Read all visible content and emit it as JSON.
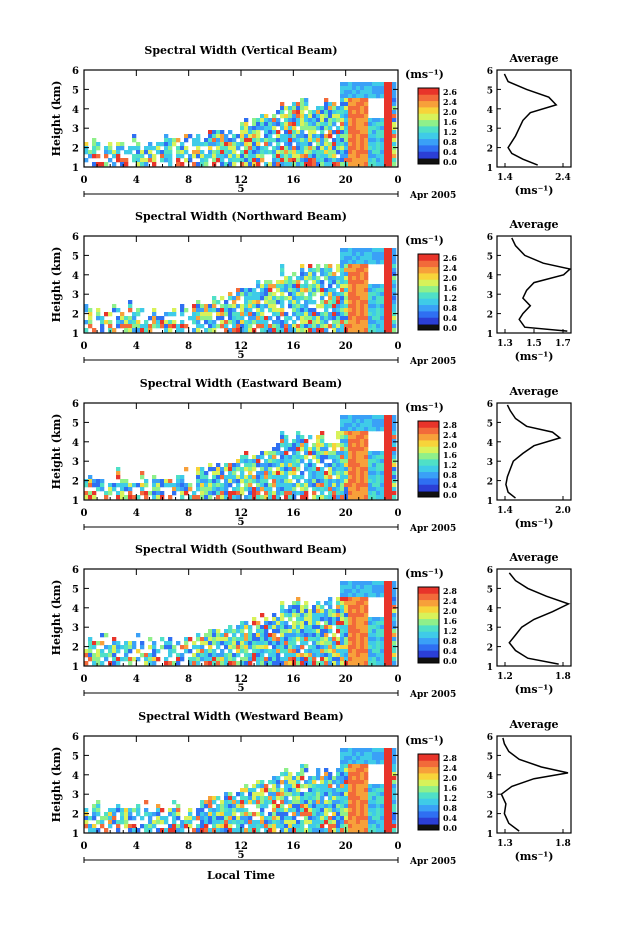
{
  "x_axis_title": "Local Time",
  "date_label": "Apr 2005",
  "date_marker": "5",
  "colorbar_unit": "(ms⁻¹)",
  "average_unit": "(ms⁻¹)",
  "average_title": "Average",
  "y_axis_label": "Height (km)",
  "colors": {
    "colormap": [
      "#1a237e",
      "#2b3fd6",
      "#2f6ff2",
      "#3aa0f7",
      "#3fcbe8",
      "#4fe0c7",
      "#8ff08a",
      "#d8f25a",
      "#f7d43a",
      "#f7a03a",
      "#f26a3a",
      "#e8342a"
    ],
    "background": "#ffffff"
  },
  "chart_data": [
    {
      "type": "heatmap",
      "title": "Spectral Width (Vertical Beam)",
      "xlabel": "",
      "ylabel": "Height (km)",
      "xticks": [
        "0",
        "4",
        "8",
        "12",
        "16",
        "20",
        "0"
      ],
      "xlim": [
        0,
        24
      ],
      "ylim": [
        1,
        6
      ],
      "yticks": [
        "1",
        "2",
        "3",
        "4",
        "5",
        "6"
      ],
      "colorbar_ticks": [
        "2.6",
        "2.4",
        "2.0",
        "1.6",
        "1.2",
        "0.8",
        "0.4",
        "0.0"
      ],
      "average": {
        "title": "Average",
        "xticks": [
          "1.4",
          "2.4"
        ],
        "xlim": [
          1.4,
          2.4
        ],
        "profile": [
          [
            1.95,
            1.1
          ],
          [
            1.75,
            1.4
          ],
          [
            1.6,
            1.7
          ],
          [
            1.55,
            2.0
          ],
          [
            1.6,
            2.3
          ],
          [
            1.65,
            2.6
          ],
          [
            1.7,
            3.0
          ],
          [
            1.75,
            3.4
          ],
          [
            1.85,
            3.8
          ],
          [
            2.2,
            4.2
          ],
          [
            2.1,
            4.6
          ],
          [
            1.8,
            5.0
          ],
          [
            1.55,
            5.4
          ],
          [
            1.5,
            5.8
          ]
        ]
      }
    },
    {
      "type": "heatmap",
      "title": "Spectral Width (Northward Beam)",
      "xlabel": "",
      "ylabel": "Height (km)",
      "xticks": [
        "0",
        "4",
        "8",
        "12",
        "16",
        "20",
        "0"
      ],
      "xlim": [
        0,
        24
      ],
      "ylim": [
        1,
        6
      ],
      "yticks": [
        "1",
        "2",
        "3",
        "4",
        "5",
        "6"
      ],
      "colorbar_ticks": [
        "2.6",
        "2.4",
        "2.0",
        "1.6",
        "1.2",
        "0.8",
        "0.4",
        "0.0"
      ],
      "average": {
        "title": "Average",
        "xticks": [
          "1.3",
          "1.5",
          "1.7"
        ],
        "xlim": [
          1.3,
          1.7
        ],
        "profile": [
          [
            1.68,
            1.1
          ],
          [
            1.45,
            1.3
          ],
          [
            1.42,
            1.7
          ],
          [
            1.44,
            2.0
          ],
          [
            1.48,
            2.4
          ],
          [
            1.44,
            2.8
          ],
          [
            1.46,
            3.2
          ],
          [
            1.5,
            3.6
          ],
          [
            1.66,
            4.0
          ],
          [
            1.7,
            4.3
          ],
          [
            1.55,
            4.6
          ],
          [
            1.45,
            5.0
          ],
          [
            1.4,
            5.5
          ],
          [
            1.38,
            5.9
          ]
        ]
      }
    },
    {
      "type": "heatmap",
      "title": "Spectral Width (Eastward Beam)",
      "xlabel": "",
      "ylabel": "Height (km)",
      "xticks": [
        "0",
        "4",
        "8",
        "12",
        "16",
        "20",
        "0"
      ],
      "xlim": [
        0,
        24
      ],
      "ylim": [
        1,
        6
      ],
      "yticks": [
        "1",
        "2",
        "3",
        "4",
        "5",
        "6"
      ],
      "colorbar_ticks": [
        "2.8",
        "2.4",
        "2.0",
        "1.6",
        "1.2",
        "0.8",
        "0.4",
        "0.0"
      ],
      "average": {
        "title": "Average",
        "xticks": [
          "1.4",
          "2.0"
        ],
        "xlim": [
          1.2,
          2.2
        ],
        "profile": [
          [
            1.45,
            1.1
          ],
          [
            1.35,
            1.4
          ],
          [
            1.32,
            1.8
          ],
          [
            1.34,
            2.2
          ],
          [
            1.38,
            2.6
          ],
          [
            1.42,
            3.0
          ],
          [
            1.55,
            3.4
          ],
          [
            1.7,
            3.8
          ],
          [
            2.05,
            4.2
          ],
          [
            1.95,
            4.5
          ],
          [
            1.6,
            4.8
          ],
          [
            1.45,
            5.2
          ],
          [
            1.38,
            5.6
          ],
          [
            1.34,
            5.9
          ]
        ]
      }
    },
    {
      "type": "heatmap",
      "title": "Spectral Width (Southward Beam)",
      "xlabel": "",
      "ylabel": "Height (km)",
      "xticks": [
        "0",
        "4",
        "8",
        "12",
        "16",
        "20",
        "0"
      ],
      "xlim": [
        0,
        24
      ],
      "ylim": [
        1,
        6
      ],
      "yticks": [
        "1",
        "2",
        "3",
        "4",
        "5",
        "6"
      ],
      "colorbar_ticks": [
        "2.8",
        "2.4",
        "2.0",
        "1.6",
        "1.2",
        "0.8",
        "0.4",
        "0.0"
      ],
      "average": {
        "title": "Average",
        "xticks": [
          "1.2",
          "1.8"
        ],
        "xlim": [
          1.2,
          1.8
        ],
        "profile": [
          [
            1.7,
            1.1
          ],
          [
            1.45,
            1.4
          ],
          [
            1.35,
            1.8
          ],
          [
            1.3,
            2.2
          ],
          [
            1.35,
            2.6
          ],
          [
            1.4,
            3.0
          ],
          [
            1.5,
            3.4
          ],
          [
            1.65,
            3.8
          ],
          [
            1.78,
            4.2
          ],
          [
            1.6,
            4.6
          ],
          [
            1.45,
            5.0
          ],
          [
            1.35,
            5.4
          ],
          [
            1.3,
            5.8
          ]
        ]
      }
    },
    {
      "type": "heatmap",
      "title": "Spectral Width (Westward Beam)",
      "xlabel": "Local Time",
      "ylabel": "Height (km)",
      "xticks": [
        "0",
        "4",
        "8",
        "12",
        "16",
        "20",
        "0"
      ],
      "xlim": [
        0,
        24
      ],
      "ylim": [
        1,
        6
      ],
      "yticks": [
        "1",
        "2",
        "3",
        "4",
        "5",
        "6"
      ],
      "colorbar_ticks": [
        "2.8",
        "2.4",
        "2.0",
        "1.6",
        "1.2",
        "0.8",
        "0.4",
        "0.0"
      ],
      "average": {
        "title": "Average",
        "xticks": [
          "1.3",
          "1.8"
        ],
        "xlim": [
          1.3,
          1.8
        ],
        "profile": [
          [
            1.45,
            1.1
          ],
          [
            1.38,
            1.5
          ],
          [
            1.35,
            2.0
          ],
          [
            1.36,
            2.5
          ],
          [
            1.33,
            3.0
          ],
          [
            1.4,
            3.4
          ],
          [
            1.55,
            3.8
          ],
          [
            1.78,
            4.1
          ],
          [
            1.6,
            4.4
          ],
          [
            1.45,
            4.8
          ],
          [
            1.38,
            5.2
          ],
          [
            1.35,
            5.6
          ],
          [
            1.34,
            5.9
          ]
        ]
      }
    }
  ]
}
